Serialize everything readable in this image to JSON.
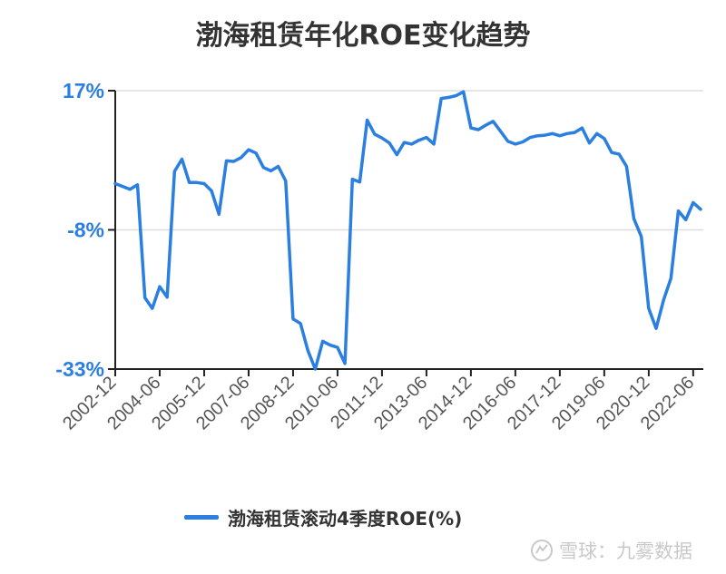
{
  "colors": {
    "line": "#2b7fe0",
    "axis": "#222222",
    "grid": "#dddddd",
    "tick_label": "#2b7fe0"
  },
  "chart_data": {
    "type": "line",
    "title": "渤海租赁年化ROE变化趋势",
    "xlabel": "",
    "ylabel": "",
    "ylim": [
      -33,
      17
    ],
    "yticks": [
      17,
      -8,
      -33
    ],
    "ytick_labels": [
      "17%",
      "-8%",
      "-33%"
    ],
    "xtick_labels": [
      "2002-12",
      "2004-06",
      "2005-12",
      "2007-06",
      "2008-12",
      "2010-06",
      "2011-12",
      "2013-06",
      "2014-12",
      "2016-06",
      "2017-12",
      "2019-06",
      "2020-12",
      "2022-06"
    ],
    "grid": "horizontal",
    "legend_position": "bottom-center",
    "series": [
      {
        "name": "渤海租赁滚动4季度ROE(%)",
        "x": [
          "2002-12",
          "2003-03",
          "2003-06",
          "2003-09",
          "2003-12",
          "2004-03",
          "2004-06",
          "2004-09",
          "2004-12",
          "2005-03",
          "2005-06",
          "2005-09",
          "2005-12",
          "2006-03",
          "2006-06",
          "2006-09",
          "2006-12",
          "2007-03",
          "2007-06",
          "2007-09",
          "2007-12",
          "2008-03",
          "2008-06",
          "2008-09",
          "2008-12",
          "2009-03",
          "2009-06",
          "2009-09",
          "2009-12",
          "2010-03",
          "2010-06",
          "2010-09",
          "2010-12",
          "2011-03",
          "2011-06",
          "2011-09",
          "2011-12",
          "2012-03",
          "2012-06",
          "2012-09",
          "2012-12",
          "2013-03",
          "2013-06",
          "2013-09",
          "2013-12",
          "2014-03",
          "2014-06",
          "2014-09",
          "2014-12",
          "2015-03",
          "2015-06",
          "2015-09",
          "2015-12",
          "2016-03",
          "2016-06",
          "2016-09",
          "2016-12",
          "2017-03",
          "2017-06",
          "2017-09",
          "2017-12",
          "2018-03",
          "2018-06",
          "2018-09",
          "2018-12",
          "2019-03",
          "2019-06",
          "2019-09",
          "2019-12",
          "2020-03",
          "2020-06",
          "2020-09",
          "2020-12",
          "2021-03",
          "2021-06",
          "2021-09",
          "2021-12",
          "2022-03",
          "2022-06",
          "2022-09"
        ],
        "values": [
          0.3,
          -0.2,
          -0.7,
          0.1,
          -20.2,
          -22.1,
          -18.2,
          -20.1,
          2.5,
          4.7,
          0.5,
          0.5,
          0.3,
          -1.0,
          -5.2,
          4.4,
          4.3,
          5.0,
          6.4,
          5.8,
          3.2,
          2.6,
          3.4,
          0.8,
          -24.0,
          -24.8,
          -29.7,
          -33.0,
          -28.0,
          -28.7,
          -29.1,
          -32.0,
          1.1,
          0.6,
          11.7,
          9.2,
          8.5,
          7.6,
          5.5,
          7.7,
          7.4,
          8.1,
          8.6,
          7.4,
          15.6,
          15.8,
          16.1,
          16.8,
          10.3,
          10.0,
          10.8,
          11.5,
          9.7,
          7.9,
          7.4,
          7.8,
          8.6,
          8.9,
          9.0,
          9.3,
          8.9,
          9.3,
          9.5,
          10.3,
          7.6,
          9.3,
          8.4,
          5.9,
          5.6,
          3.4,
          -6.0,
          -9.2,
          -22.1,
          -25.7,
          -20.6,
          -16.7,
          -4.6,
          -6.2,
          -3.1,
          -4.3
        ]
      }
    ]
  },
  "legend": {
    "label": "渤海租赁滚动4季度ROE(%)"
  },
  "watermark": {
    "text": "雪球：九雾数据"
  }
}
